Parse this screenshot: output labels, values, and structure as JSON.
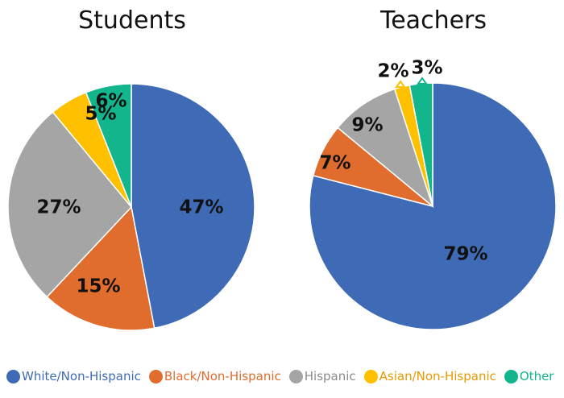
{
  "chart_data": [
    {
      "type": "pie",
      "title": "Students",
      "categories": [
        "White/Non-Hispanic",
        "Black/Non-Hispanic",
        "Hispanic",
        "Asian/Non-Hispanic",
        "Other"
      ],
      "values": [
        47,
        15,
        27,
        5,
        6
      ],
      "labels": [
        "47%",
        "15%",
        "27%",
        "5%",
        "6%"
      ],
      "colors": [
        "#3F6BB6",
        "#E06C2E",
        "#A5A5A5",
        "#FFC000",
        "#12B58C"
      ],
      "start_angle": "12 o'clock, clockwise",
      "legend_position": "bottom"
    },
    {
      "type": "pie",
      "title": "Teachers",
      "categories": [
        "White/Non-Hispanic",
        "Black/Non-Hispanic",
        "Hispanic",
        "Asian/Non-Hispanic",
        "Other"
      ],
      "values": [
        79,
        7,
        9,
        2,
        3
      ],
      "labels": [
        "79%",
        "7%",
        "9%",
        "2%",
        "3%"
      ],
      "colors": [
        "#3F6BB6",
        "#E06C2E",
        "#A5A5A5",
        "#FFC000",
        "#12B58C"
      ],
      "start_angle": "12 o'clock, clockwise",
      "legend_position": "bottom"
    }
  ],
  "titles": {
    "students": "Students",
    "teachers": "Teachers"
  },
  "legend": [
    {
      "label": "White/Non-Hispanic",
      "color": "#3F6BB6"
    },
    {
      "label": "Black/Non-Hispanic",
      "color": "#E06C2E"
    },
    {
      "label": "Hispanic",
      "color": "#A5A5A5"
    },
    {
      "label": "Asian/Non-Hispanic",
      "color": "#F0A500"
    },
    {
      "label": "Other",
      "color": "#12B58C"
    }
  ],
  "legend_dot_colors": [
    "#3F6BB6",
    "#E06C2E",
    "#A5A5A5",
    "#FFC000",
    "#12B58C"
  ]
}
